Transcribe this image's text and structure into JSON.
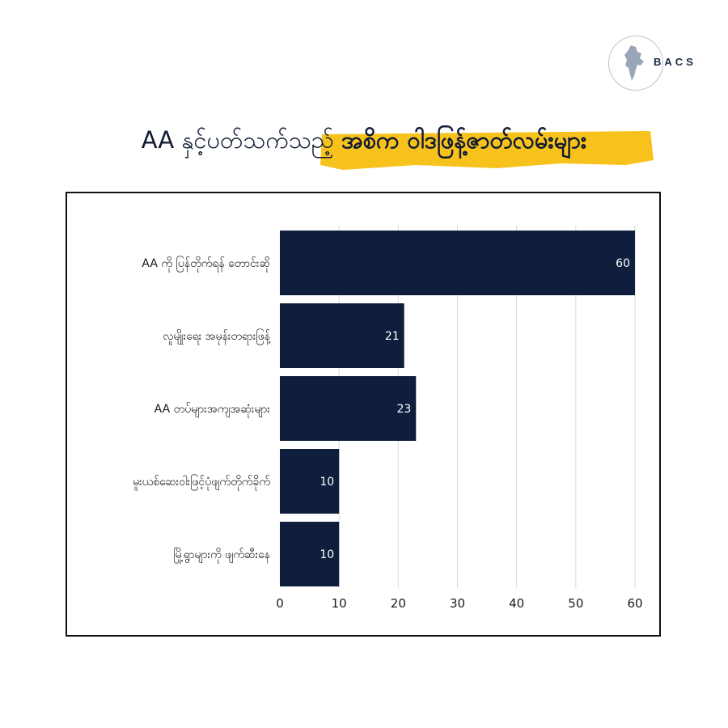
{
  "logo": {
    "text": "BACS",
    "icon": "myanmar-map-icon"
  },
  "title": {
    "part1": "AA နှင့်ပတ်သက်သည့်",
    "part2": "အစိက ဝါဒဖြန့်ဇာတ်လမ်းများ",
    "highlight_color": "#f7c21c"
  },
  "colors": {
    "bar": "#0f1e3c",
    "grid": "#d9d9d9",
    "frame": "#111111"
  },
  "chart_data": {
    "type": "bar",
    "orientation": "horizontal",
    "categories": [
      "AA ကို ပြန်တိုက်ရန် တောင်းဆို",
      "လူမျိုးရေး အမုန်းတရားဖြန့်",
      "AA တပ်များအကျအဆုံးများ",
      "မူးယစ်ဆေးဝါးဖြင့်ပုံဖျက်တိုက်ခိုက်",
      "မြို့ရွာများကို ဖျက်ဆီးနေ"
    ],
    "values": [
      60,
      21,
      23,
      10,
      10
    ],
    "xlim": [
      0,
      60
    ],
    "xticks": [
      0,
      10,
      20,
      30,
      40,
      50,
      60
    ],
    "grid": true,
    "data_labels": true,
    "title": "",
    "xlabel": "",
    "ylabel": ""
  }
}
